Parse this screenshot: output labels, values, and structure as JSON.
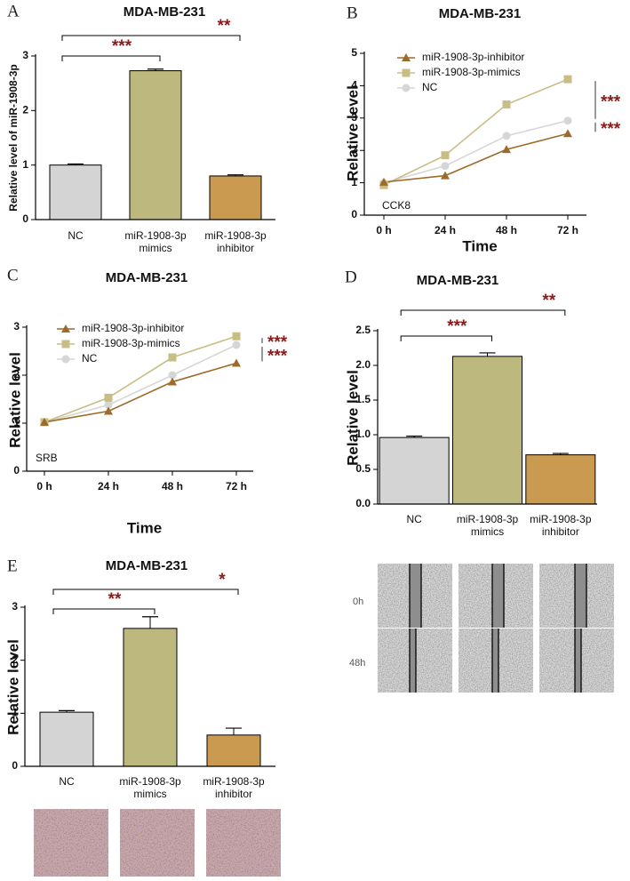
{
  "chart_data": [
    {
      "type": "bar",
      "panel": "A",
      "title": "MDA-MB-231",
      "y_label": "Relative level of miR-1908-3p",
      "categories": [
        "NC",
        "miR-1908-3p\nmimics",
        "miR-1908-3p\ninhibitor"
      ],
      "values": [
        1.0,
        2.73,
        0.8
      ],
      "errors": [
        0.02,
        0.03,
        0.02
      ],
      "colors": [
        "#d4d4d4",
        "#bdb87e",
        "#c99a4f"
      ],
      "ylim": [
        0,
        3
      ],
      "yticks": [
        0,
        1,
        2,
        3
      ],
      "significance": [
        "***",
        "**"
      ]
    },
    {
      "type": "line",
      "panel": "B",
      "title": "MDA-MB-231",
      "x_label": "Time",
      "y_label": "Relative level",
      "annotation": "CCK8",
      "categories": [
        "0 h",
        "24 h",
        "48 h",
        "72 h"
      ],
      "ylim": [
        0,
        5
      ],
      "yticks": [
        0,
        1,
        2,
        3,
        4,
        5
      ],
      "series": [
        {
          "name": "miR-1908-3p-inhibitor",
          "color": "#9c6b2a",
          "marker": "triangle",
          "values": [
            1.02,
            1.22,
            2.03,
            2.52
          ]
        },
        {
          "name": "miR-1908-3p-mimics",
          "color": "#c9bd86",
          "marker": "square",
          "values": [
            0.93,
            1.85,
            3.42,
            4.2
          ]
        },
        {
          "name": "NC",
          "color": "#d6d6d6",
          "marker": "circle",
          "values": [
            1.0,
            1.52,
            2.45,
            2.92
          ]
        }
      ],
      "significance": [
        "***",
        "***"
      ]
    },
    {
      "type": "line",
      "panel": "C",
      "title": "MDA-MB-231",
      "x_label": "Time",
      "y_label": "Relative level",
      "annotation": "SRB",
      "categories": [
        "0 h",
        "24 h",
        "48 h",
        "72 h"
      ],
      "ylim": [
        0,
        3
      ],
      "yticks": [
        0,
        1,
        2,
        3
      ],
      "series": [
        {
          "name": "miR-1908-3p-inhibitor",
          "color": "#9c6b2a",
          "marker": "triangle",
          "values": [
            1.02,
            1.25,
            1.86,
            2.25
          ]
        },
        {
          "name": "miR-1908-3p-mimics",
          "color": "#c9bd86",
          "marker": "square",
          "values": [
            1.02,
            1.53,
            2.37,
            2.81
          ]
        },
        {
          "name": "NC",
          "color": "#d6d6d6",
          "marker": "circle",
          "values": [
            1.02,
            1.38,
            2.0,
            2.63
          ]
        }
      ],
      "significance": [
        "***",
        "***"
      ]
    },
    {
      "type": "bar",
      "panel": "D",
      "title": "MDA-MB-231",
      "y_label": "Relative level",
      "categories": [
        "NC",
        "miR-1908-3p\nmimics",
        "miR-1908-3p\ninhibitor"
      ],
      "values": [
        0.96,
        2.13,
        0.71
      ],
      "errors": [
        0.02,
        0.05,
        0.02
      ],
      "colors": [
        "#d4d4d4",
        "#bdb87e",
        "#c99a4f"
      ],
      "ylim": [
        0,
        2.5
      ],
      "yticks": [
        {
          "value": 0,
          "label": "0.0"
        },
        0.5,
        {
          "value": 1,
          "label": "1.0"
        },
        1.5,
        {
          "value": 2,
          "label": "2.0"
        },
        2.5
      ],
      "significance": [
        "***",
        "**"
      ]
    },
    {
      "type": "bar",
      "panel": "E",
      "title": "MDA-MB-231",
      "y_label": "Relative level",
      "categories": [
        "NC",
        "miR-1908-3p\nmimics",
        "miR-1908-3p\ninhibitor"
      ],
      "values": [
        1.02,
        2.6,
        0.59
      ],
      "errors": [
        0.03,
        0.22,
        0.13
      ],
      "colors": [
        "#d4d4d4",
        "#bdb87e",
        "#c99a4f"
      ],
      "ylim": [
        0,
        3
      ],
      "yticks": [
        0,
        1,
        2,
        3
      ],
      "significance": [
        "**",
        "*"
      ]
    }
  ],
  "wound_healing": {
    "row_labels": [
      "0h",
      "48h"
    ]
  }
}
